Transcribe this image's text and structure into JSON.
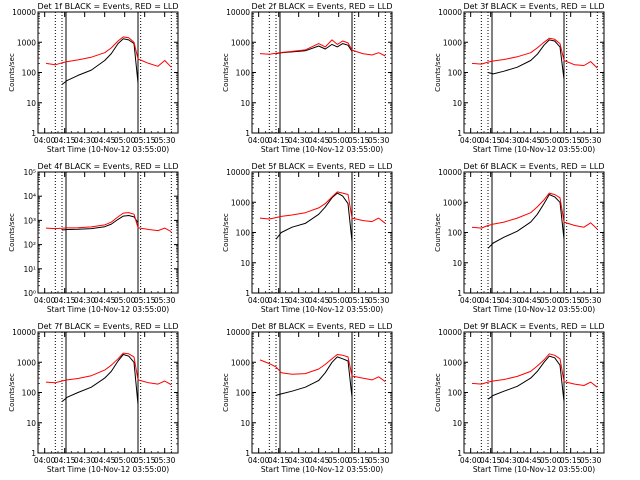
{
  "colors": {
    "events": "#000000",
    "lld": "#ff0000",
    "axes": "#000000",
    "background": "#ffffff"
  },
  "time_tick_labels": [
    "04:00",
    "04:15",
    "04:30",
    "04:45",
    "05:00",
    "05:15",
    "05:30"
  ],
  "chart_data": [
    {
      "type": "line",
      "title": "Det 1f BLACK = Events, RED = LLD",
      "xlabel": "Start Time (10-Nov-12 03:55:00)",
      "ylabel": "Counts/sec",
      "y_scale": "log",
      "ylim": [
        1,
        10000
      ],
      "y_tick_labels": [
        "1",
        "10",
        "100",
        "1000",
        "10000"
      ],
      "xlim": [
        "03:55",
        "05:40"
      ],
      "x": [
        "04:01",
        "04:08",
        "04:13",
        "04:17",
        "04:25",
        "04:35",
        "04:45",
        "04:50",
        "04:55",
        "04:59",
        "05:03",
        "05:07",
        "05:10",
        "05:18",
        "05:25",
        "05:30",
        "05:35"
      ],
      "series": [
        {
          "name": "BLACK = Events",
          "values": [
            null,
            null,
            40,
            55,
            80,
            120,
            250,
            420,
            900,
            1300,
            1200,
            900,
            45,
            null,
            null,
            null,
            null
          ]
        },
        {
          "name": "RED = LLD",
          "values": [
            200,
            180,
            210,
            230,
            260,
            320,
            450,
            650,
            1100,
            1500,
            1400,
            1000,
            280,
            200,
            160,
            250,
            150
          ]
        }
      ],
      "vertical_markers_solid": [
        "04:16",
        "05:10"
      ],
      "vertical_markers_dotted": [
        "04:08",
        "04:13",
        "05:12",
        "05:35"
      ]
    },
    {
      "type": "line",
      "title": "Det 2f BLACK = Events, RED = LLD",
      "xlabel": "Start Time (10-Nov-12 03:55:00)",
      "ylabel": "Counts/sec",
      "y_scale": "log",
      "ylim": [
        1,
        10000
      ],
      "y_tick_labels": [
        "1",
        "10",
        "100",
        "1000",
        "10000"
      ],
      "xlim": [
        "03:55",
        "05:40"
      ],
      "x": [
        "04:01",
        "04:08",
        "04:13",
        "04:17",
        "04:25",
        "04:35",
        "04:45",
        "04:50",
        "04:55",
        "04:59",
        "05:03",
        "05:07",
        "05:10",
        "05:18",
        "05:25",
        "05:30",
        "05:35"
      ],
      "series": [
        {
          "name": "BLACK = Events",
          "values": [
            null,
            null,
            420,
            450,
            480,
            520,
            750,
            600,
            850,
            700,
            900,
            800,
            500,
            null,
            null,
            null,
            null
          ]
        },
        {
          "name": "RED = LLD",
          "values": [
            420,
            400,
            430,
            460,
            500,
            560,
            900,
            700,
            1200,
            850,
            1100,
            950,
            550,
            420,
            380,
            450,
            350
          ]
        }
      ],
      "vertical_markers_solid": [
        "04:16",
        "05:10"
      ],
      "vertical_markers_dotted": [
        "04:08",
        "04:13",
        "05:12",
        "05:35"
      ]
    },
    {
      "type": "line",
      "title": "Det 3f BLACK = Events, RED = LLD",
      "xlabel": "Start Time (10-Nov-12 03:55:00)",
      "ylabel": "Counts/sec",
      "y_scale": "log",
      "ylim": [
        1,
        10000
      ],
      "y_tick_labels": [
        "1",
        "10",
        "100",
        "1000",
        "10000"
      ],
      "xlim": [
        "03:55",
        "05:40"
      ],
      "x": [
        "04:01",
        "04:08",
        "04:13",
        "04:17",
        "04:25",
        "04:35",
        "04:45",
        "04:50",
        "04:55",
        "04:59",
        "05:03",
        "05:07",
        "05:10",
        "05:18",
        "05:25",
        "05:30",
        "05:35"
      ],
      "series": [
        {
          "name": "BLACK = Events",
          "values": [
            null,
            null,
            100,
            90,
            110,
            150,
            250,
            400,
            800,
            1200,
            1100,
            700,
            60,
            null,
            null,
            null,
            null
          ]
        },
        {
          "name": "RED = LLD",
          "values": [
            200,
            190,
            220,
            240,
            270,
            330,
            450,
            650,
            1000,
            1350,
            1250,
            900,
            250,
            180,
            170,
            230,
            140
          ]
        }
      ],
      "vertical_markers_solid": [
        "04:16",
        "05:10"
      ],
      "vertical_markers_dotted": [
        "04:08",
        "04:13",
        "05:12",
        "05:35"
      ]
    },
    {
      "type": "line",
      "title": "Det 4f BLACK = Events, RED = LLD",
      "xlabel": "Start Time (10-Nov-12 03:55:00)",
      "ylabel": "Counts/sec",
      "y_scale": "log",
      "ylim": [
        1,
        100000
      ],
      "y_tick_labels": [
        "10⁰",
        "10¹",
        "10²",
        "10³",
        "10⁴",
        "10⁵"
      ],
      "xlim": [
        "03:55",
        "05:40"
      ],
      "x": [
        "04:01",
        "04:08",
        "04:13",
        "04:17",
        "04:25",
        "04:35",
        "04:45",
        "04:50",
        "04:55",
        "04:59",
        "05:03",
        "05:07",
        "05:10",
        "05:18",
        "05:25",
        "05:30",
        "05:35"
      ],
      "series": [
        {
          "name": "BLACK = Events",
          "values": [
            null,
            null,
            400,
            420,
            430,
            460,
            550,
            700,
            1100,
            1500,
            1600,
            1400,
            800,
            null,
            null,
            null,
            null
          ]
        },
        {
          "name": "RED = LLD",
          "values": [
            480,
            460,
            470,
            490,
            500,
            540,
            650,
            850,
            1400,
            2000,
            2100,
            1800,
            500,
            420,
            380,
            480,
            340
          ]
        }
      ],
      "vertical_markers_solid": [
        "04:16",
        "05:10"
      ],
      "vertical_markers_dotted": [
        "04:08",
        "04:13",
        "05:12",
        "05:35"
      ]
    },
    {
      "type": "line",
      "title": "Det 5f BLACK = Events, RED = LLD",
      "xlabel": "Start Time (10-Nov-12 03:55:00)",
      "ylabel": "Counts/sec",
      "y_scale": "log",
      "ylim": [
        1,
        10000
      ],
      "y_tick_labels": [
        "1",
        "10",
        "100",
        "1000",
        "10000"
      ],
      "xlim": [
        "03:55",
        "05:40"
      ],
      "x": [
        "04:01",
        "04:08",
        "04:13",
        "04:17",
        "04:25",
        "04:35",
        "04:45",
        "04:50",
        "04:55",
        "04:59",
        "05:03",
        "05:07",
        "05:10",
        "05:18",
        "05:25",
        "05:30",
        "05:35"
      ],
      "series": [
        {
          "name": "BLACK = Events",
          "values": [
            null,
            null,
            60,
            100,
            150,
            200,
            400,
            700,
            1400,
            2000,
            1600,
            900,
            50,
            null,
            null,
            null,
            null
          ]
        },
        {
          "name": "RED = LLD",
          "values": [
            300,
            280,
            310,
            340,
            380,
            450,
            650,
            900,
            1500,
            2200,
            2000,
            1800,
            300,
            250,
            230,
            300,
            200
          ]
        }
      ],
      "vertical_markers_solid": [
        "04:16",
        "05:10"
      ],
      "vertical_markers_dotted": [
        "04:08",
        "04:13",
        "05:12",
        "05:35"
      ]
    },
    {
      "type": "line",
      "title": "Det 6f BLACK = Events, RED = LLD",
      "xlabel": "Start Time (10-Nov-12 03:55:00)",
      "ylabel": "Counts/sec",
      "y_scale": "log",
      "ylim": [
        1,
        10000
      ],
      "y_tick_labels": [
        "1",
        "10",
        "100",
        "1000",
        "10000"
      ],
      "xlim": [
        "03:55",
        "05:40"
      ],
      "x": [
        "04:01",
        "04:08",
        "04:13",
        "04:17",
        "04:25",
        "04:35",
        "04:45",
        "04:50",
        "04:55",
        "04:59",
        "05:03",
        "05:07",
        "05:10",
        "05:18",
        "05:25",
        "05:30",
        "05:35"
      ],
      "series": [
        {
          "name": "BLACK = Events",
          "values": [
            null,
            null,
            30,
            45,
            70,
            110,
            220,
            400,
            900,
            1800,
            1500,
            1000,
            60,
            null,
            null,
            null,
            null
          ]
        },
        {
          "name": "RED = LLD",
          "values": [
            150,
            140,
            170,
            190,
            220,
            300,
            450,
            700,
            1200,
            2000,
            1800,
            1400,
            220,
            170,
            150,
            210,
            130
          ]
        }
      ],
      "vertical_markers_solid": [
        "04:16",
        "05:10"
      ],
      "vertical_markers_dotted": [
        "04:08",
        "04:13",
        "05:12",
        "05:35"
      ]
    },
    {
      "type": "line",
      "title": "Det 7f BLACK = Events, RED = LLD",
      "xlabel": "Start Time (10-Nov-12 03:55:00)",
      "ylabel": "Counts/sec",
      "y_scale": "log",
      "ylim": [
        1,
        10000
      ],
      "y_tick_labels": [
        "1",
        "10",
        "100",
        "1000",
        "10000"
      ],
      "xlim": [
        "03:55",
        "05:40"
      ],
      "x": [
        "04:01",
        "04:08",
        "04:13",
        "04:17",
        "04:25",
        "04:35",
        "04:45",
        "04:50",
        "04:55",
        "04:59",
        "05:03",
        "05:07",
        "05:10",
        "05:18",
        "05:25",
        "05:30",
        "05:35"
      ],
      "series": [
        {
          "name": "BLACK = Events",
          "values": [
            null,
            null,
            50,
            70,
            100,
            150,
            300,
            500,
            1100,
            1800,
            1600,
            1000,
            40,
            null,
            null,
            null,
            null
          ]
        },
        {
          "name": "RED = LLD",
          "values": [
            220,
            210,
            240,
            260,
            290,
            360,
            550,
            800,
            1300,
            2000,
            1900,
            1500,
            260,
            210,
            190,
            240,
            180
          ]
        }
      ],
      "vertical_markers_solid": [
        "04:16",
        "05:10"
      ],
      "vertical_markers_dotted": [
        "04:08",
        "04:13",
        "05:12",
        "05:35"
      ]
    },
    {
      "type": "line",
      "title": "Det 8f BLACK = Events, RED = LLD",
      "xlabel": "Start Time (10-Nov-12 03:55:00)",
      "ylabel": "Counts/sec",
      "y_scale": "log",
      "ylim": [
        1,
        10000
      ],
      "y_tick_labels": [
        "1",
        "10",
        "100",
        "1000",
        "10000"
      ],
      "xlim": [
        "03:55",
        "05:40"
      ],
      "x": [
        "04:01",
        "04:08",
        "04:13",
        "04:17",
        "04:25",
        "04:35",
        "04:45",
        "04:50",
        "04:55",
        "04:59",
        "05:03",
        "05:07",
        "05:10",
        "05:18",
        "05:25",
        "05:30",
        "05:35"
      ],
      "series": [
        {
          "name": "BLACK = Events",
          "values": [
            null,
            null,
            80,
            90,
            110,
            150,
            250,
            450,
            1000,
            1500,
            1300,
            1100,
            70,
            null,
            null,
            null,
            null
          ]
        },
        {
          "name": "RED = LLD",
          "values": [
            1200,
            900,
            700,
            450,
            400,
            420,
            600,
            850,
            1300,
            1800,
            1700,
            1500,
            350,
            300,
            260,
            330,
            230
          ]
        }
      ],
      "vertical_markers_solid": [
        "04:16",
        "05:10"
      ],
      "vertical_markers_dotted": [
        "04:08",
        "04:13",
        "05:12",
        "05:35"
      ]
    },
    {
      "type": "line",
      "title": "Det 9f BLACK = Events, RED = LLD",
      "xlabel": "Start Time (10-Nov-12 03:55:00)",
      "ylabel": "Counts/sec",
      "y_scale": "log",
      "ylim": [
        1,
        10000
      ],
      "y_tick_labels": [
        "1",
        "10",
        "100",
        "1000",
        "10000"
      ],
      "xlim": [
        "03:55",
        "05:40"
      ],
      "x": [
        "04:01",
        "04:08",
        "04:13",
        "04:17",
        "04:25",
        "04:35",
        "04:45",
        "04:50",
        "04:55",
        "04:59",
        "05:03",
        "05:07",
        "05:10",
        "05:18",
        "05:25",
        "05:30",
        "05:35"
      ],
      "series": [
        {
          "name": "BLACK = Events",
          "values": [
            null,
            null,
            60,
            80,
            110,
            160,
            300,
            500,
            1000,
            1600,
            1400,
            800,
            50,
            null,
            null,
            null,
            null
          ]
        },
        {
          "name": "RED = LLD",
          "values": [
            200,
            190,
            220,
            240,
            270,
            340,
            500,
            750,
            1200,
            1900,
            1700,
            1300,
            230,
            190,
            170,
            220,
            150
          ]
        }
      ],
      "vertical_markers_solid": [
        "04:16",
        "05:10"
      ],
      "vertical_markers_dotted": [
        "04:08",
        "04:13",
        "05:12",
        "05:35"
      ]
    }
  ]
}
